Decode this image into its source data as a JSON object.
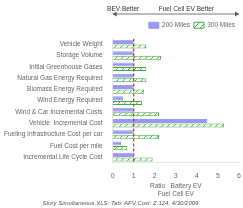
{
  "chart_data": {
    "type": "bar",
    "orientation": "horizontal",
    "categories": [
      "Vehicle Weight",
      "Storage Volume",
      "Initial Greenhouse Gases",
      "Natural Gas Energy Required",
      "Biomass Energy Required",
      "Wind Energy Required",
      "Wind & Car Incremental Costs",
      "Vehicle  Incremental Cost",
      "Fueling Infrastructure Cost per car",
      "Fuel Cost per mile",
      "Incremental Life Cycle Cost"
    ],
    "series": [
      {
        "name": "200 Miles",
        "color": "#9999ee",
        "values": [
          1.0,
          1.0,
          1.0,
          1.0,
          1.0,
          0.5,
          1.0,
          4.5,
          1.0,
          0.4,
          1.0
        ]
      },
      {
        "name": "300 Miles",
        "color": "#44aa44",
        "values": [
          1.6,
          2.3,
          1.6,
          1.6,
          1.5,
          1.4,
          2.2,
          5.3,
          2.2,
          0.7,
          1.9
        ]
      }
    ],
    "xlabel": "Ratio   Battery EV\nFuel Cell EV",
    "xlim": [
      0,
      6
    ],
    "xticks": [
      0,
      1,
      2,
      3,
      4,
      5,
      6
    ],
    "grid": false,
    "legend": "upper right",
    "lines": [
      {
        "x": 1.0,
        "color": "#dd2222",
        "line_style": "dashed"
      }
    ],
    "annotations": [
      {
        "text": "BEV Better",
        "from": 1.0,
        "to": 0
      },
      {
        "text": "Fuel Cell EV Better",
        "from": 1.0,
        "to": 6
      }
    ],
    "footnote": "Story Simultaneous.XLS: Tab: AFV Cost: Z 124: 4/30/2009"
  }
}
